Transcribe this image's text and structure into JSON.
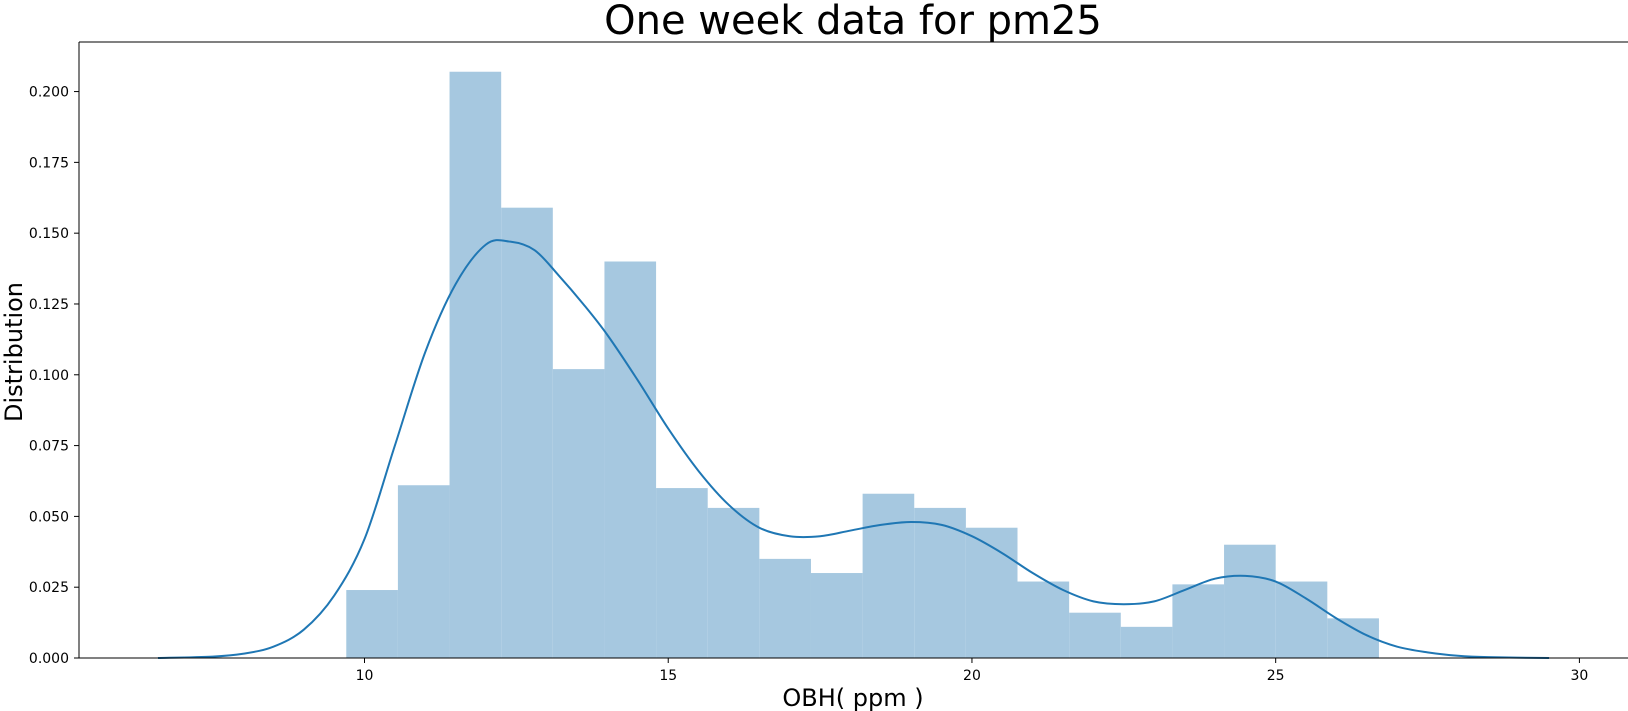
{
  "chart_data": {
    "type": "bar",
    "title": "One week data for pm25",
    "xlabel": "OBH( ppm )",
    "ylabel": "Distribution",
    "xlim": [
      5.3,
      30.8
    ],
    "ylim": [
      0,
      0.2175
    ],
    "xticks": [
      10,
      15,
      20,
      25,
      30
    ],
    "xtick_labels": [
      "10",
      "15",
      "20",
      "25",
      "30"
    ],
    "yticks": [
      0.0,
      0.025,
      0.05,
      0.075,
      0.1,
      0.125,
      0.15,
      0.175,
      0.2
    ],
    "ytick_labels": [
      "0.000",
      "0.025",
      "0.050",
      "0.075",
      "0.100",
      "0.125",
      "0.150",
      "0.175",
      "0.200"
    ],
    "grid": false,
    "colors": {
      "bars": "#a6c8e0",
      "kde": "#1f77b4",
      "axis": "#000000"
    },
    "histogram": {
      "bin_edges": [
        9.7,
        10.55,
        11.4,
        12.25,
        13.1,
        13.95,
        14.8,
        15.65,
        16.5,
        17.35,
        18.2,
        19.05,
        19.9,
        20.75,
        21.6,
        22.45,
        23.3,
        24.15,
        25.0,
        25.85,
        26.7
      ],
      "values": [
        0.024,
        0.061,
        0.207,
        0.159,
        0.102,
        0.14,
        0.06,
        0.053,
        0.035,
        0.03,
        0.058,
        0.053,
        0.046,
        0.027,
        0.016,
        0.011,
        0.026,
        0.04,
        0.027,
        0.014
      ]
    },
    "kde": {
      "x": [
        6.6,
        7.5,
        8.0,
        8.5,
        9.0,
        9.5,
        10.0,
        10.5,
        11.0,
        11.5,
        12.0,
        12.4,
        12.8,
        13.2,
        13.6,
        14.0,
        14.5,
        15.0,
        15.5,
        16.0,
        16.5,
        17.0,
        17.5,
        18.0,
        18.5,
        19.0,
        19.5,
        20.0,
        20.5,
        21.0,
        21.5,
        22.0,
        22.5,
        23.0,
        23.5,
        24.0,
        24.5,
        25.0,
        25.5,
        26.0,
        26.5,
        27.0,
        27.5,
        28.0,
        28.5,
        29.5
      ],
      "y": [
        0.0,
        0.0005,
        0.0015,
        0.004,
        0.01,
        0.022,
        0.042,
        0.075,
        0.108,
        0.132,
        0.146,
        0.147,
        0.144,
        0.135,
        0.125,
        0.114,
        0.098,
        0.081,
        0.066,
        0.054,
        0.046,
        0.043,
        0.043,
        0.045,
        0.047,
        0.048,
        0.047,
        0.043,
        0.037,
        0.03,
        0.024,
        0.02,
        0.019,
        0.02,
        0.024,
        0.028,
        0.029,
        0.027,
        0.021,
        0.014,
        0.008,
        0.004,
        0.002,
        0.0008,
        0.0003,
        0.0
      ]
    }
  }
}
